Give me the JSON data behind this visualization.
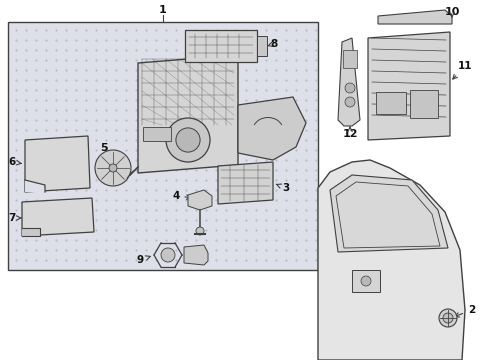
{
  "bg_color": "#ffffff",
  "box_bg": "#e8eaed",
  "box_dot": "#c8ccd4",
  "line_color": "#404040",
  "label_color": "#111111",
  "figsize": [
    4.9,
    3.6
  ],
  "dpi": 100
}
